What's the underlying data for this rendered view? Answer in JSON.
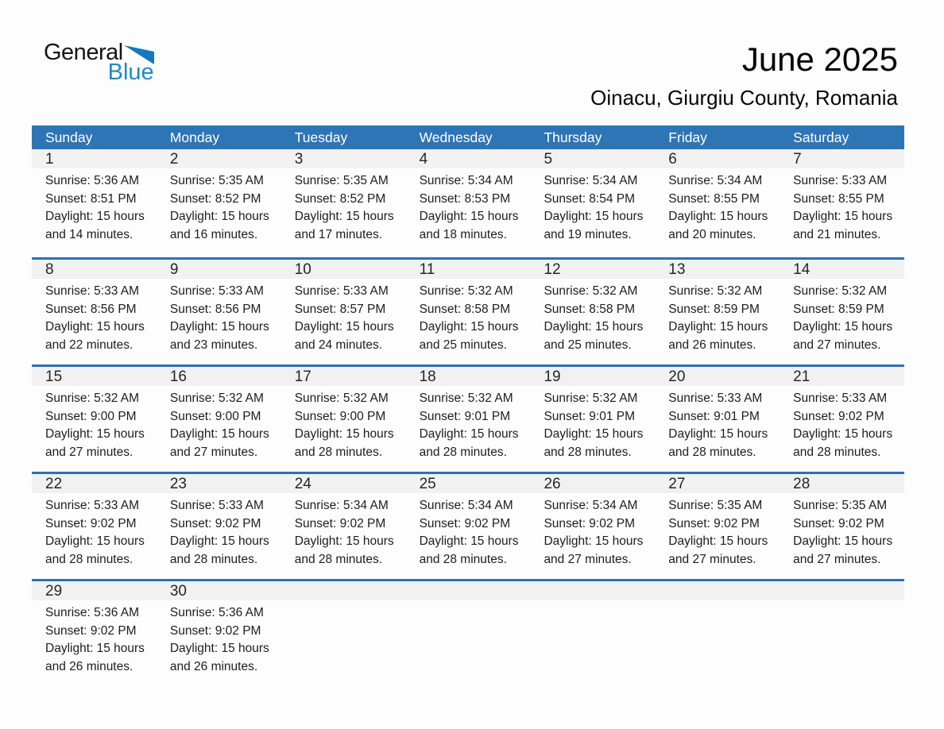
{
  "logo": {
    "text_top": "General",
    "text_bottom": "Blue",
    "triangle_icon": "blue-right-triangle"
  },
  "title": {
    "month_year": "June 2025",
    "location": "Oinacu, Giurgiu County, Romania"
  },
  "colors": {
    "header_blue": "#2E75B6",
    "divider_blue": "#2C71B5",
    "band_gray": "#F1F1F1",
    "logo_text_blue": "#1E8ACA",
    "logo_triangle_blue": "#1678BF",
    "page_bg": "#FDFDFD",
    "body_text": "#1D1D1D"
  },
  "weekdays": [
    "Sunday",
    "Monday",
    "Tuesday",
    "Wednesday",
    "Thursday",
    "Friday",
    "Saturday"
  ],
  "weeks": [
    [
      {
        "day": "1",
        "sunrise": "Sunrise: 5:36 AM",
        "sunset": "Sunset: 8:51 PM",
        "daylight": "Daylight: 15 hours and 14 minutes."
      },
      {
        "day": "2",
        "sunrise": "Sunrise: 5:35 AM",
        "sunset": "Sunset: 8:52 PM",
        "daylight": "Daylight: 15 hours and 16 minutes."
      },
      {
        "day": "3",
        "sunrise": "Sunrise: 5:35 AM",
        "sunset": "Sunset: 8:52 PM",
        "daylight": "Daylight: 15 hours and 17 minutes."
      },
      {
        "day": "4",
        "sunrise": "Sunrise: 5:34 AM",
        "sunset": "Sunset: 8:53 PM",
        "daylight": "Daylight: 15 hours and 18 minutes."
      },
      {
        "day": "5",
        "sunrise": "Sunrise: 5:34 AM",
        "sunset": "Sunset: 8:54 PM",
        "daylight": "Daylight: 15 hours and 19 minutes."
      },
      {
        "day": "6",
        "sunrise": "Sunrise: 5:34 AM",
        "sunset": "Sunset: 8:55 PM",
        "daylight": "Daylight: 15 hours and 20 minutes."
      },
      {
        "day": "7",
        "sunrise": "Sunrise: 5:33 AM",
        "sunset": "Sunset: 8:55 PM",
        "daylight": "Daylight: 15 hours and 21 minutes."
      }
    ],
    [
      {
        "day": "8",
        "sunrise": "Sunrise: 5:33 AM",
        "sunset": "Sunset: 8:56 PM",
        "daylight": "Daylight: 15 hours and 22 minutes."
      },
      {
        "day": "9",
        "sunrise": "Sunrise: 5:33 AM",
        "sunset": "Sunset: 8:56 PM",
        "daylight": "Daylight: 15 hours and 23 minutes."
      },
      {
        "day": "10",
        "sunrise": "Sunrise: 5:33 AM",
        "sunset": "Sunset: 8:57 PM",
        "daylight": "Daylight: 15 hours and 24 minutes."
      },
      {
        "day": "11",
        "sunrise": "Sunrise: 5:32 AM",
        "sunset": "Sunset: 8:58 PM",
        "daylight": "Daylight: 15 hours and 25 minutes."
      },
      {
        "day": "12",
        "sunrise": "Sunrise: 5:32 AM",
        "sunset": "Sunset: 8:58 PM",
        "daylight": "Daylight: 15 hours and 25 minutes."
      },
      {
        "day": "13",
        "sunrise": "Sunrise: 5:32 AM",
        "sunset": "Sunset: 8:59 PM",
        "daylight": "Daylight: 15 hours and 26 minutes."
      },
      {
        "day": "14",
        "sunrise": "Sunrise: 5:32 AM",
        "sunset": "Sunset: 8:59 PM",
        "daylight": "Daylight: 15 hours and 27 minutes."
      }
    ],
    [
      {
        "day": "15",
        "sunrise": "Sunrise: 5:32 AM",
        "sunset": "Sunset: 9:00 PM",
        "daylight": "Daylight: 15 hours and 27 minutes."
      },
      {
        "day": "16",
        "sunrise": "Sunrise: 5:32 AM",
        "sunset": "Sunset: 9:00 PM",
        "daylight": "Daylight: 15 hours and 27 minutes."
      },
      {
        "day": "17",
        "sunrise": "Sunrise: 5:32 AM",
        "sunset": "Sunset: 9:00 PM",
        "daylight": "Daylight: 15 hours and 28 minutes."
      },
      {
        "day": "18",
        "sunrise": "Sunrise: 5:32 AM",
        "sunset": "Sunset: 9:01 PM",
        "daylight": "Daylight: 15 hours and 28 minutes."
      },
      {
        "day": "19",
        "sunrise": "Sunrise: 5:32 AM",
        "sunset": "Sunset: 9:01 PM",
        "daylight": "Daylight: 15 hours and 28 minutes."
      },
      {
        "day": "20",
        "sunrise": "Sunrise: 5:33 AM",
        "sunset": "Sunset: 9:01 PM",
        "daylight": "Daylight: 15 hours and 28 minutes."
      },
      {
        "day": "21",
        "sunrise": "Sunrise: 5:33 AM",
        "sunset": "Sunset: 9:02 PM",
        "daylight": "Daylight: 15 hours and 28 minutes."
      }
    ],
    [
      {
        "day": "22",
        "sunrise": "Sunrise: 5:33 AM",
        "sunset": "Sunset: 9:02 PM",
        "daylight": "Daylight: 15 hours and 28 minutes."
      },
      {
        "day": "23",
        "sunrise": "Sunrise: 5:33 AM",
        "sunset": "Sunset: 9:02 PM",
        "daylight": "Daylight: 15 hours and 28 minutes."
      },
      {
        "day": "24",
        "sunrise": "Sunrise: 5:34 AM",
        "sunset": "Sunset: 9:02 PM",
        "daylight": "Daylight: 15 hours and 28 minutes."
      },
      {
        "day": "25",
        "sunrise": "Sunrise: 5:34 AM",
        "sunset": "Sunset: 9:02 PM",
        "daylight": "Daylight: 15 hours and 28 minutes."
      },
      {
        "day": "26",
        "sunrise": "Sunrise: 5:34 AM",
        "sunset": "Sunset: 9:02 PM",
        "daylight": "Daylight: 15 hours and 27 minutes."
      },
      {
        "day": "27",
        "sunrise": "Sunrise: 5:35 AM",
        "sunset": "Sunset: 9:02 PM",
        "daylight": "Daylight: 15 hours and 27 minutes."
      },
      {
        "day": "28",
        "sunrise": "Sunrise: 5:35 AM",
        "sunset": "Sunset: 9:02 PM",
        "daylight": "Daylight: 15 hours and 27 minutes."
      }
    ],
    [
      {
        "day": "29",
        "sunrise": "Sunrise: 5:36 AM",
        "sunset": "Sunset: 9:02 PM",
        "daylight": "Daylight: 15 hours and 26 minutes."
      },
      {
        "day": "30",
        "sunrise": "Sunrise: 5:36 AM",
        "sunset": "Sunset: 9:02 PM",
        "daylight": "Daylight: 15 hours and 26 minutes."
      },
      null,
      null,
      null,
      null,
      null
    ]
  ]
}
